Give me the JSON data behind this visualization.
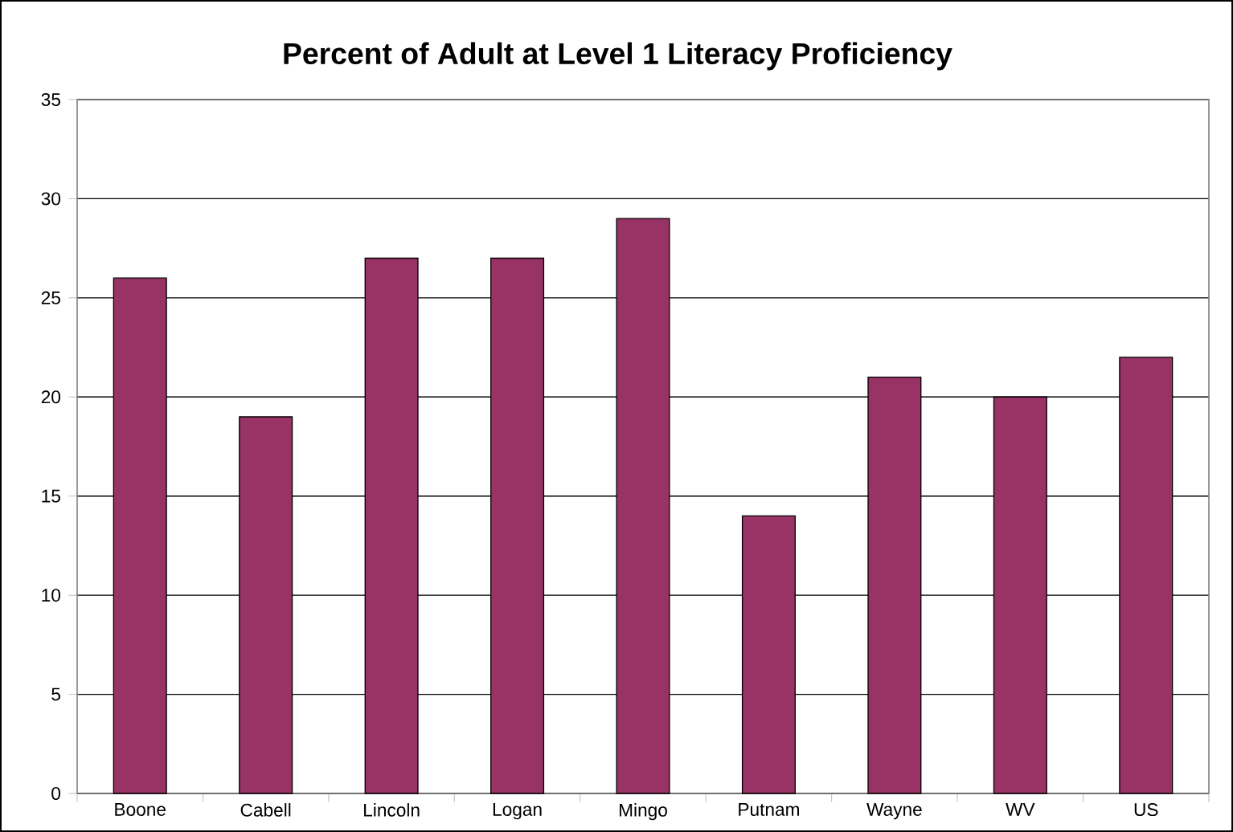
{
  "chart_data": {
    "type": "bar",
    "title": "Percent of Adult at Level 1 Literacy Proficiency",
    "categories": [
      "Boone",
      "Cabell",
      "Lincoln",
      "Logan",
      "Mingo",
      "Putnam",
      "Wayne",
      "WV",
      "US"
    ],
    "values": [
      26,
      19,
      27,
      27,
      29,
      14,
      21,
      20,
      22
    ],
    "color": "#993366",
    "ylim": [
      0,
      35
    ],
    "yticks": [
      0,
      5,
      10,
      15,
      20,
      25,
      30,
      35
    ],
    "grid": "y"
  }
}
